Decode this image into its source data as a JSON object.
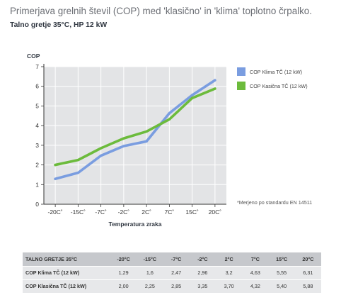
{
  "header": {
    "title": "Primerjava grelnih števil (COP) med 'klasično' in 'klima' toplotno črpalko.",
    "subtitle": "Talno gretje 35°C, HP 12 kW"
  },
  "colors": {
    "klima": "#7a9de0",
    "klasicna": "#6cbb3c",
    "plot_bg": "#e3e4e6",
    "grid": "#ffffff",
    "axis": "#333333"
  },
  "chart_data": {
    "type": "line",
    "title": "",
    "xlabel": "Temperatura zraka",
    "ylabel": "COP",
    "categories": [
      "-20C˚",
      "-15C˚",
      "-7C˚",
      "-2C˚",
      "2C˚",
      "7C˚",
      "15C˚",
      "20C˚"
    ],
    "ylim": [
      0,
      7
    ],
    "yticks": [
      0,
      1,
      2,
      3,
      4,
      5,
      6,
      7
    ],
    "grid": true,
    "legend_position": "right",
    "series": [
      {
        "name": "COP Klima TČ (12 kW)",
        "color": "#7a9de0",
        "values": [
          1.29,
          1.6,
          2.47,
          2.96,
          3.2,
          4.63,
          5.55,
          6.31
        ]
      },
      {
        "name": "COP Kasična TČ (12 kW)",
        "color": "#6cbb3c",
        "values": [
          2.0,
          2.25,
          2.85,
          3.35,
          3.7,
          4.32,
          5.4,
          5.88
        ]
      }
    ]
  },
  "footnote": "*Merjeno po standardu EN 14511",
  "table": {
    "header_label": "TALNO GRETJE 35°C",
    "columns": [
      "-20°C",
      "-15°C",
      "-7°C",
      "-2°C",
      "2°C",
      "7°C",
      "15°C",
      "20°C"
    ],
    "rows": [
      {
        "label": "COP Klima TČ (12 kW)",
        "values": [
          "1,29",
          "1,6",
          "2,47",
          "2,96",
          "3,2",
          "4,63",
          "5,55",
          "6,31"
        ]
      },
      {
        "label": "COP Klasična TČ (12 kW)",
        "values": [
          "2,00",
          "2,25",
          "2,85",
          "3,35",
          "3,70",
          "4,32",
          "5,40",
          "5,88"
        ]
      }
    ]
  }
}
